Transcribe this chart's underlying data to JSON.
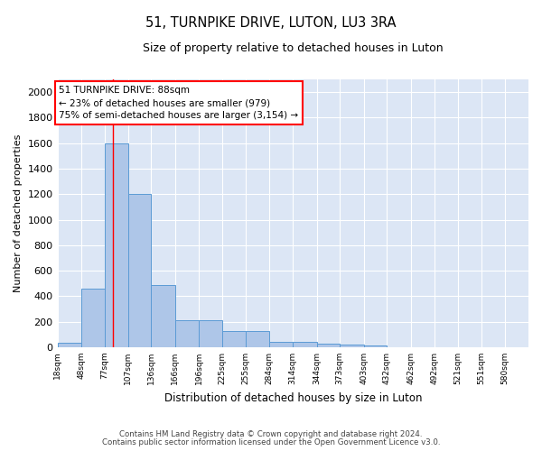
{
  "title": "51, TURNPIKE DRIVE, LUTON, LU3 3RA",
  "subtitle": "Size of property relative to detached houses in Luton",
  "xlabel": "Distribution of detached houses by size in Luton",
  "ylabel": "Number of detached properties",
  "footnote1": "Contains HM Land Registry data © Crown copyright and database right 2024.",
  "footnote2": "Contains public sector information licensed under the Open Government Licence v3.0.",
  "bar_color": "#aec6e8",
  "bar_edge_color": "#5b9bd5",
  "bg_color": "#dce6f5",
  "annotation_line1": "51 TURNPIKE DRIVE: 88sqm",
  "annotation_line2": "← 23% of detached houses are smaller (979)",
  "annotation_line3": "75% of semi-detached houses are larger (3,154) →",
  "property_sqm": 88,
  "bins": [
    18,
    48,
    77,
    107,
    136,
    166,
    196,
    225,
    255,
    284,
    314,
    344,
    373,
    403,
    432,
    462,
    492,
    521,
    551,
    580,
    610
  ],
  "counts": [
    35,
    460,
    1600,
    1200,
    490,
    210,
    210,
    130,
    130,
    45,
    45,
    30,
    20,
    15,
    0,
    0,
    0,
    0,
    0,
    0
  ],
  "ylim": [
    0,
    2100
  ],
  "yticks": [
    0,
    200,
    400,
    600,
    800,
    1000,
    1200,
    1400,
    1600,
    1800,
    2000
  ]
}
